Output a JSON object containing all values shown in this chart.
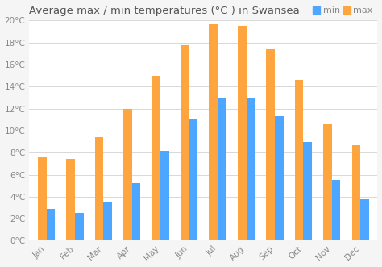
{
  "title": "Average max / min temperatures (°C ) in Swansea",
  "months": [
    "Jan",
    "Feb",
    "Mar",
    "Apr",
    "May",
    "Jun",
    "Jul",
    "Aug",
    "Sep",
    "Oct",
    "Nov",
    "Dec"
  ],
  "min_temps": [
    2.9,
    2.5,
    3.5,
    5.2,
    8.2,
    11.1,
    13.0,
    13.0,
    11.3,
    9.0,
    5.5,
    3.8
  ],
  "max_temps": [
    7.6,
    7.4,
    9.4,
    12.0,
    15.0,
    17.8,
    19.7,
    19.5,
    17.4,
    14.6,
    10.6,
    8.7
  ],
  "min_color": "#4da6ff",
  "max_color": "#ffa540",
  "bg_color": "#f5f5f5",
  "plot_bg_color": "#ffffff",
  "grid_color": "#d8d8d8",
  "ylim": [
    0,
    20
  ],
  "yticks": [
    0,
    2,
    4,
    6,
    8,
    10,
    12,
    14,
    16,
    18,
    20
  ],
  "title_fontsize": 9.5,
  "legend_fontsize": 8,
  "tick_fontsize": 7.5,
  "bar_width": 0.3,
  "title_color": "#555555",
  "tick_color": "#888888"
}
